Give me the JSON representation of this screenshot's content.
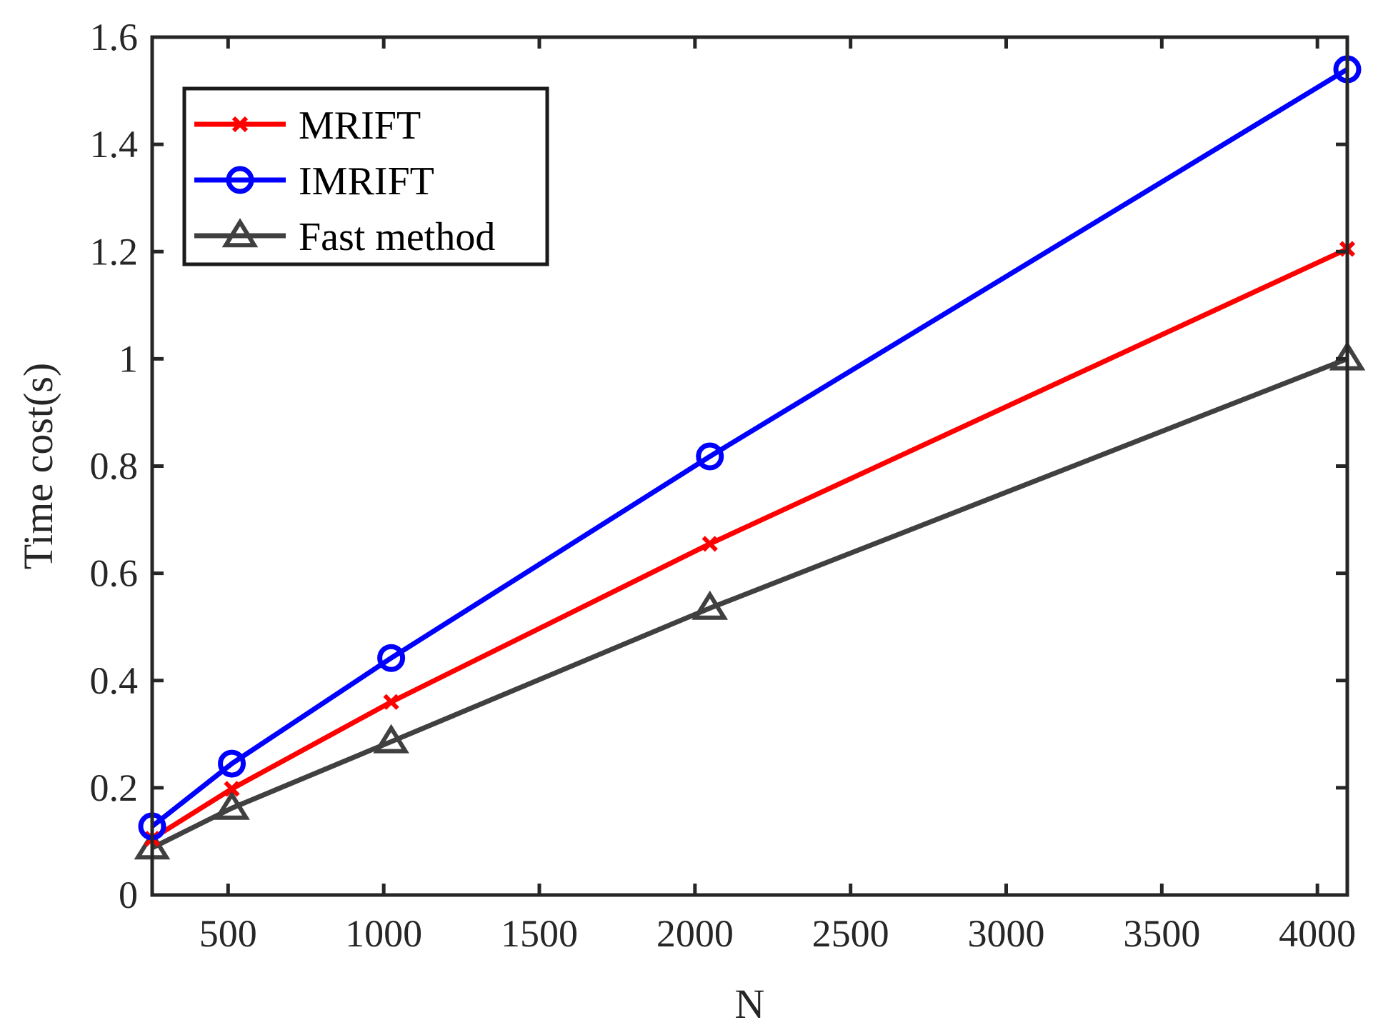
{
  "chart_data": {
    "type": "line",
    "xlabel": "N",
    "ylabel": "Time cost(s)",
    "xlim": [
      256,
      4096
    ],
    "ylim": [
      0,
      1.6
    ],
    "xticks": [
      500,
      1000,
      1500,
      2000,
      2500,
      3000,
      3500,
      4000
    ],
    "xtick_labels": [
      "500",
      "1000",
      "1500",
      "2000",
      "2500",
      "3000",
      "3500",
      "4000"
    ],
    "yticks": [
      0,
      0.2,
      0.4,
      0.6,
      0.8,
      1,
      1.2,
      1.4,
      1.6
    ],
    "ytick_labels": [
      "0",
      "0.2",
      "0.4",
      "0.6",
      "0.8",
      "1",
      "1.2",
      "1.4",
      "1.6"
    ],
    "x": [
      256,
      512,
      1024,
      2048,
      4096
    ],
    "legend_position": "top-left",
    "series": [
      {
        "name": "MRIFT",
        "values": [
          0.105,
          0.198,
          0.36,
          0.655,
          1.205
        ],
        "color": "#ff0000",
        "marker": "x"
      },
      {
        "name": "IMRIFT",
        "values": [
          0.128,
          0.245,
          0.442,
          0.818,
          1.54
        ],
        "color": "#0000ff",
        "marker": "circle"
      },
      {
        "name": "Fast method",
        "values": [
          0.088,
          0.162,
          0.286,
          0.535,
          1.0
        ],
        "color": "#404040",
        "marker": "triangle"
      }
    ]
  }
}
